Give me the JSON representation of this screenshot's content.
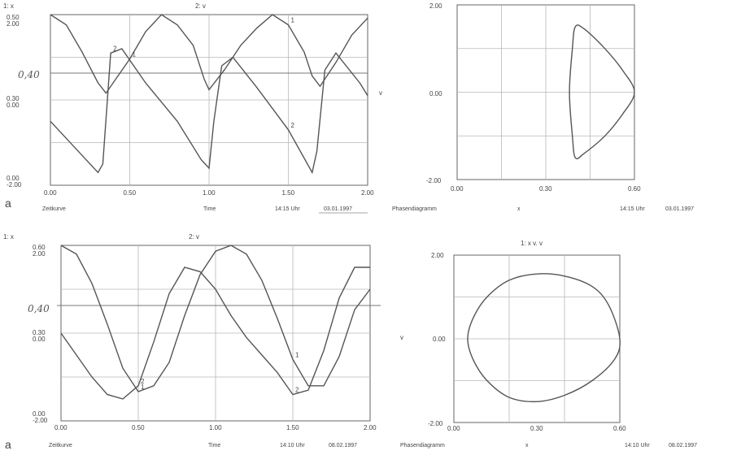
{
  "panels": {
    "top_left": {
      "header_left": "1: x",
      "header_mid": "2: v",
      "y_ticks_1": [
        "0.50",
        "0.30",
        "0.00"
      ],
      "y_ticks_2": [
        "2.00",
        "0.00",
        "-2.00"
      ],
      "x_ticks": [
        "0.00",
        "0.50",
        "1.00",
        "1.50",
        "2.00"
      ],
      "handwritten": "0,40",
      "footer": {
        "left": "Zeitkurve",
        "mid": "Time",
        "time": "14:15  Uhr",
        "date": "03.01.1997"
      }
    },
    "top_right": {
      "y_ticks": [
        "2.00",
        "0.00",
        "-2.00"
      ],
      "x_ticks": [
        "0.00",
        "0.30",
        "0.60"
      ],
      "y_axis": "v",
      "footer": {
        "left": "Phasendiagramm",
        "mid": "x",
        "time": "14:15  Uhr",
        "date": "03.01.1997"
      }
    },
    "bottom_left": {
      "header_left": "1: x",
      "header_mid": "2: v",
      "y_ticks_1": [
        "0.60",
        "0.30",
        "0.00"
      ],
      "y_ticks_2": [
        "2.00",
        "0.00",
        "-2.00"
      ],
      "x_ticks": [
        "0.00",
        "0.50",
        "1.00",
        "1.50",
        "2.00"
      ],
      "handwritten": "0,40",
      "footer": {
        "left": "Zeitkurve",
        "mid": "Time",
        "time": "14:10  Uhr",
        "date": "08.02.1997"
      }
    },
    "bottom_right": {
      "title": "1: x v. v",
      "y_ticks": [
        "2.00",
        "0.00",
        "-2.00"
      ],
      "x_ticks": [
        "0.00",
        "0.30",
        "0.60"
      ],
      "y_axis": "v",
      "footer": {
        "left": "Phasendiagramm",
        "mid": "x",
        "time": "14:10  Uhr",
        "date": "08.02.1997"
      }
    }
  },
  "label_a": "a",
  "colors": {
    "curve": "#555555",
    "grid": "#b8b8b8",
    "frame": "#666666"
  },
  "chart_data": [
    {
      "type": "line",
      "xlim": [
        0,
        2
      ],
      "xlabel": "Time",
      "series": [
        {
          "name": "x",
          "ylim": [
            0,
            0.5
          ],
          "x": [
            0,
            0.1,
            0.2,
            0.3,
            0.35,
            0.5,
            0.6,
            0.7,
            0.8,
            0.9,
            0.97,
            1.0,
            1.1,
            1.2,
            1.3,
            1.4,
            1.5,
            1.6,
            1.65,
            1.7,
            1.8,
            1.9,
            2.0
          ],
          "y": [
            0.5,
            0.47,
            0.39,
            0.3,
            0.27,
            0.37,
            0.45,
            0.5,
            0.47,
            0.41,
            0.31,
            0.28,
            0.34,
            0.41,
            0.46,
            0.5,
            0.47,
            0.39,
            0.32,
            0.29,
            0.36,
            0.44,
            0.49
          ]
        },
        {
          "name": "v",
          "ylim": [
            -2,
            2
          ],
          "x": [
            0,
            0.1,
            0.2,
            0.3,
            0.33,
            0.38,
            0.45,
            0.6,
            0.8,
            0.95,
            1.0,
            1.03,
            1.08,
            1.15,
            1.3,
            1.5,
            1.65,
            1.68,
            1.73,
            1.8,
            1.95,
            2.0
          ],
          "y": [
            -0.5,
            -0.9,
            -1.3,
            -1.7,
            -1.5,
            1.1,
            1.2,
            0.4,
            -0.5,
            -1.4,
            -1.6,
            -0.5,
            0.8,
            1.0,
            0.3,
            -0.7,
            -1.7,
            -1.2,
            0.7,
            1.1,
            0.4,
            0.1
          ]
        }
      ]
    },
    {
      "type": "scatter",
      "xlabel": "x",
      "ylabel": "v",
      "xlim": [
        0,
        0.6
      ],
      "ylim": [
        -2,
        2
      ],
      "series": [
        {
          "x": [
            0.4,
            0.43,
            0.5,
            0.56,
            0.6,
            0.56,
            0.5,
            0.43,
            0.4,
            0.39,
            0.38,
            0.39,
            0.4
          ],
          "y": [
            1.5,
            1.45,
            1.0,
            0.5,
            0.0,
            -0.5,
            -1.0,
            -1.4,
            -1.5,
            -1.0,
            0.0,
            1.0,
            1.5
          ]
        }
      ]
    },
    {
      "type": "line",
      "xlim": [
        0,
        2
      ],
      "xlabel": "Time",
      "series": [
        {
          "name": "x",
          "ylim": [
            0,
            0.6
          ],
          "x": [
            0,
            0.1,
            0.2,
            0.3,
            0.4,
            0.5,
            0.6,
            0.7,
            0.8,
            0.9,
            1.0,
            1.1,
            1.2,
            1.3,
            1.4,
            1.5,
            1.6,
            1.7,
            1.8,
            1.9,
            2.0
          ],
          "y": [
            0.6,
            0.57,
            0.47,
            0.33,
            0.18,
            0.1,
            0.12,
            0.2,
            0.36,
            0.5,
            0.58,
            0.6,
            0.57,
            0.48,
            0.35,
            0.21,
            0.12,
            0.12,
            0.22,
            0.38,
            0.45
          ]
        },
        {
          "name": "v",
          "ylim": [
            -2,
            2
          ],
          "x": [
            0,
            0.1,
            0.2,
            0.3,
            0.4,
            0.5,
            0.6,
            0.7,
            0.8,
            0.9,
            1.0,
            1.1,
            1.2,
            1.3,
            1.4,
            1.5,
            1.6,
            1.7,
            1.8,
            1.9,
            2.0
          ],
          "y": [
            0.0,
            -0.5,
            -1.0,
            -1.4,
            -1.5,
            -1.2,
            -0.2,
            0.9,
            1.5,
            1.4,
            1.0,
            0.4,
            -0.1,
            -0.5,
            -0.9,
            -1.4,
            -1.3,
            -0.4,
            0.8,
            1.5,
            1.5
          ]
        }
      ]
    },
    {
      "type": "scatter",
      "title": "1: x v. v",
      "xlabel": "x",
      "ylabel": "v",
      "xlim": [
        0,
        0.6
      ],
      "ylim": [
        -2,
        2
      ],
      "series": [
        {
          "x": [
            0.3,
            0.4,
            0.5,
            0.56,
            0.6,
            0.58,
            0.5,
            0.4,
            0.3,
            0.2,
            0.12,
            0.07,
            0.05,
            0.07,
            0.12,
            0.2,
            0.3
          ],
          "y": [
            1.55,
            1.5,
            1.25,
            0.8,
            0.0,
            -0.5,
            -1.0,
            -1.35,
            -1.5,
            -1.4,
            -1.0,
            -0.5,
            0.0,
            0.5,
            1.0,
            1.4,
            1.55
          ]
        }
      ]
    }
  ]
}
